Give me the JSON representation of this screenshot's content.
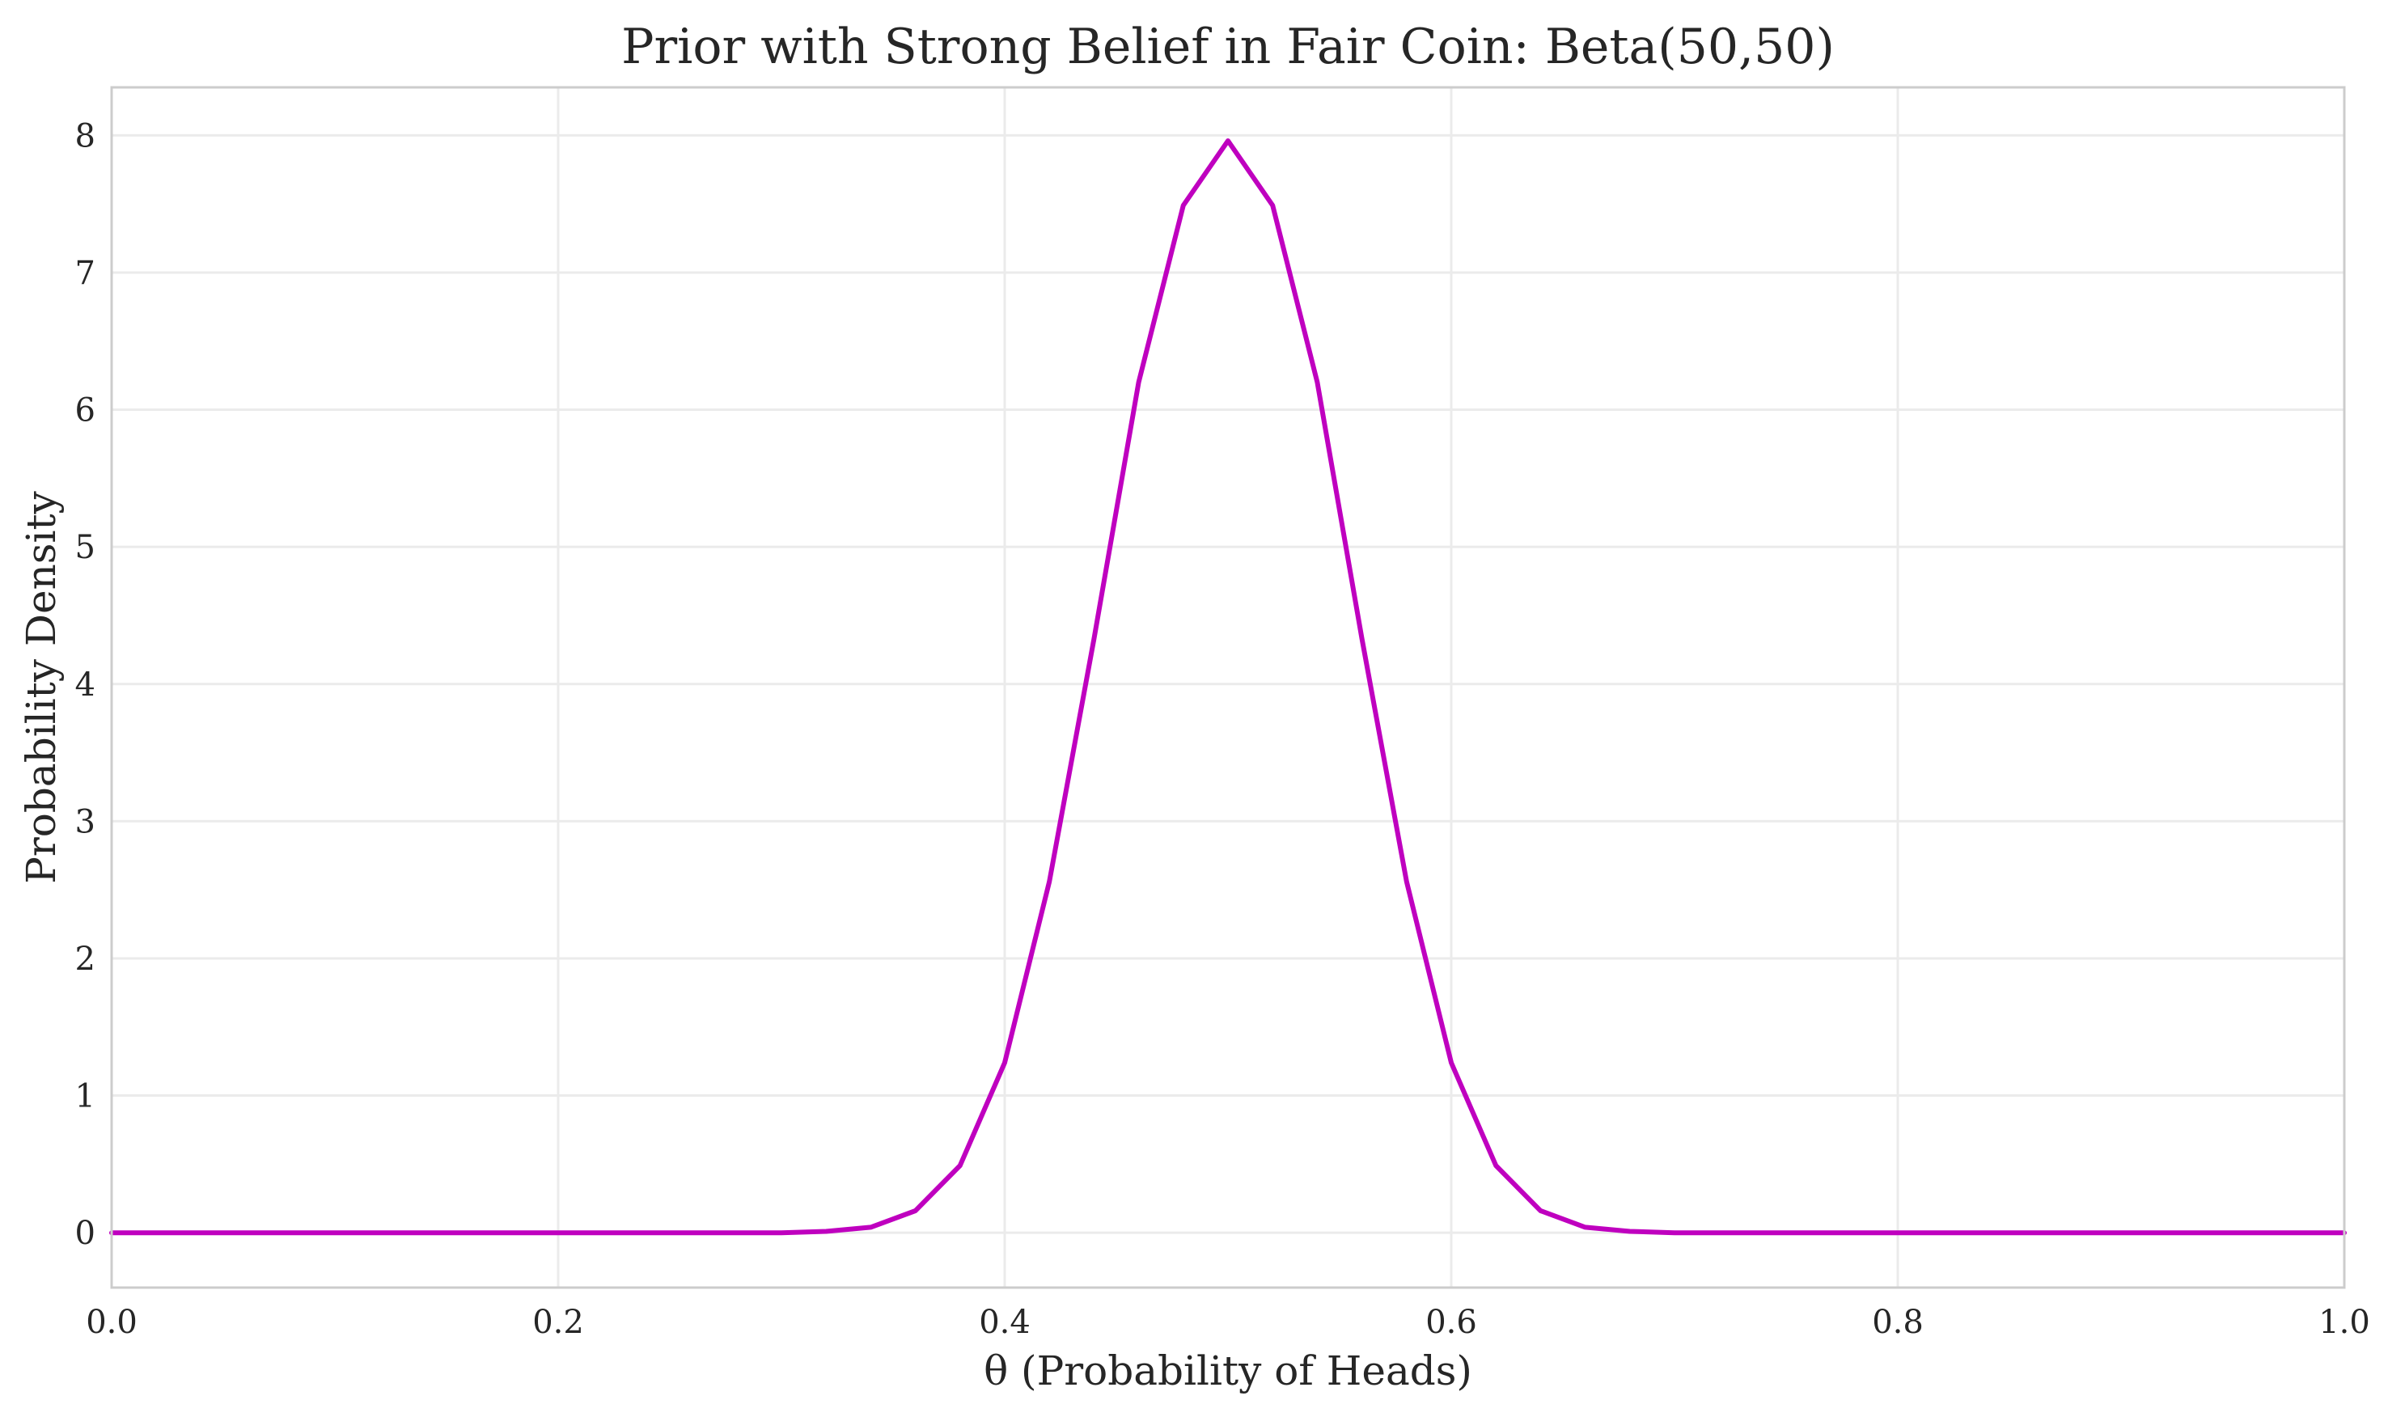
{
  "chart_data": {
    "type": "line",
    "title": "Prior with Strong Belief in Fair Coin: Beta(50,50)",
    "xlabel": "θ (Probability of Heads)",
    "ylabel": "Probability Density",
    "xlim": [
      0.0,
      1.0
    ],
    "ylim": [
      -0.4,
      8.35
    ],
    "xticks": [
      0.0,
      0.2,
      0.4,
      0.6,
      0.8,
      1.0
    ],
    "xtick_labels": [
      "0.0",
      "0.2",
      "0.4",
      "0.6",
      "0.8",
      "1.0"
    ],
    "yticks": [
      0,
      1,
      2,
      3,
      4,
      5,
      6,
      7,
      8
    ],
    "ytick_labels": [
      "0",
      "1",
      "2",
      "3",
      "4",
      "5",
      "6",
      "7",
      "8"
    ],
    "grid": true,
    "line_color": "#bf00bf",
    "series": [
      {
        "x": [
          0.0,
          0.3,
          0.32,
          0.34,
          0.36,
          0.38,
          0.4,
          0.42,
          0.44,
          0.46,
          0.48,
          0.5,
          0.52,
          0.54,
          0.56,
          0.58,
          0.6,
          0.62,
          0.64,
          0.66,
          0.68,
          0.7,
          1.0
        ],
        "y": [
          0.0,
          0.0,
          0.01,
          0.04,
          0.16,
          0.49,
          1.24,
          2.56,
          4.33,
          6.2,
          7.49,
          7.96,
          7.49,
          6.2,
          4.33,
          2.56,
          1.24,
          0.49,
          0.16,
          0.04,
          0.01,
          0.0,
          0.0
        ]
      }
    ]
  }
}
